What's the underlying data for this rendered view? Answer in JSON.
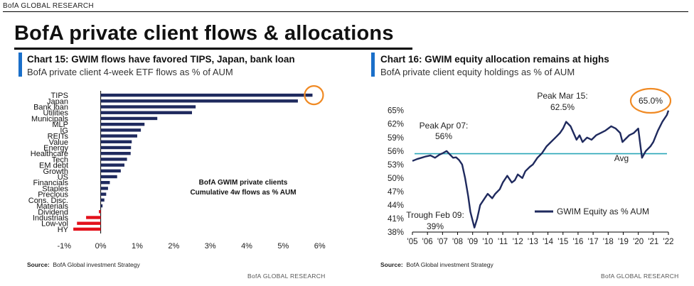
{
  "header": {
    "brand": "BofA GLOBAL RESEARCH",
    "title": "BofA private client flows & allocations"
  },
  "colors": {
    "accent": "#1a6fc9",
    "bar_positive": "#1f2a5e",
    "bar_negative": "#e3101b",
    "highlight": "#f08a24",
    "avg_line": "#2aa6b8"
  },
  "left": {
    "title": "Chart 15: GWIM flows have favored TIPS, Japan, bank loan",
    "subtitle": "BofA private client 4-week ETF flows as % of AUM",
    "annotation_line1": "BofA GWIM private clients",
    "annotation_line2": "Cumulative 4w flows as % AUM",
    "source_label": "Source:",
    "source_text": "BofA Global investment Strategy"
  },
  "right": {
    "title": "Chart 16: GWIM equity allocation remains at highs",
    "subtitle": "BofA private client equity holdings as % of AUM",
    "source_label": "Source:",
    "source_text": "BofA Global investment Strategy",
    "footer_brand": "BofA GLOBAL RESEARCH",
    "legend": "GWIM Equity as % AUM",
    "ann_peak07": [
      "Peak Apr 07:",
      "56%"
    ],
    "ann_peak15": [
      "Peak Mar 15:",
      "62.5%"
    ],
    "ann_trough": [
      "Trough Feb 09:",
      "39%"
    ],
    "ann_avg": "Avg",
    "ann_now": "65.0%"
  },
  "footer_brand": "BofA GLOBAL RESEARCH",
  "chart_data": [
    {
      "type": "bar",
      "orientation": "horizontal",
      "title": "Chart 15: GWIM flows have favored TIPS, Japan, bank loan",
      "categories": [
        "TIPS",
        "Japan",
        "Bank loan",
        "Utilities",
        "Municipals",
        "MLP",
        "IG",
        "REITs",
        "Value",
        "Energy",
        "Healthcare",
        "Tech",
        "EM debt",
        "Growth",
        "US",
        "Financials",
        "Staples",
        "Precious",
        "Cons. Disc.",
        "Materials",
        "Dividend",
        "Industrials",
        "Low-vol",
        "HY"
      ],
      "values": [
        5.8,
        5.4,
        2.6,
        2.5,
        1.55,
        1.2,
        1.1,
        1.0,
        0.85,
        0.83,
        0.82,
        0.72,
        0.65,
        0.55,
        0.45,
        0.25,
        0.2,
        0.15,
        0.1,
        0.05,
        -0.05,
        -0.4,
        -0.65,
        -0.75
      ],
      "xlim": [
        -1.2,
        6.2
      ],
      "xticks": [
        "-1%",
        "0%",
        "1%",
        "2%",
        "3%",
        "4%",
        "5%",
        "6%"
      ],
      "xtick_values": [
        -1,
        0,
        1,
        2,
        3,
        4,
        5,
        6
      ]
    },
    {
      "type": "line",
      "title": "Chart 16: GWIM equity allocation remains at highs",
      "series": [
        {
          "name": "GWIM Equity as % AUM",
          "x": [
            2005.0,
            2005.3,
            2005.6,
            2005.9,
            2006.2,
            2006.5,
            2006.8,
            2007.0,
            2007.27,
            2007.5,
            2007.7,
            2007.9,
            2008.1,
            2008.3,
            2008.5,
            2008.7,
            2008.85,
            2009.0,
            2009.12,
            2009.3,
            2009.5,
            2009.8,
            2010.0,
            2010.3,
            2010.5,
            2010.8,
            2011.0,
            2011.3,
            2011.6,
            2011.8,
            2012.0,
            2012.3,
            2012.5,
            2012.8,
            2013.0,
            2013.3,
            2013.6,
            2013.9,
            2014.2,
            2014.5,
            2014.8,
            2015.0,
            2015.21,
            2015.5,
            2015.7,
            2015.9,
            2016.1,
            2016.3,
            2016.6,
            2016.9,
            2017.2,
            2017.5,
            2017.8,
            2018.0,
            2018.2,
            2018.5,
            2018.8,
            2018.95,
            2019.1,
            2019.4,
            2019.7,
            2020.0,
            2020.15,
            2020.25,
            2020.5,
            2020.8,
            2021.0,
            2021.3,
            2021.6,
            2021.9,
            2022.0
          ],
          "y": [
            53.8,
            54.2,
            54.5,
            54.8,
            55.0,
            54.5,
            55.2,
            55.5,
            56.0,
            55.2,
            54.5,
            54.6,
            54.0,
            53.0,
            50.0,
            46.0,
            42.5,
            40.5,
            39.0,
            41.0,
            44.0,
            45.5,
            46.5,
            45.5,
            46.5,
            47.5,
            49.0,
            50.5,
            49.0,
            49.5,
            50.8,
            50.0,
            51.5,
            52.5,
            53.0,
            54.5,
            55.5,
            57.0,
            58.0,
            59.0,
            60.0,
            61.0,
            62.5,
            61.5,
            60.0,
            58.5,
            59.5,
            58.0,
            59.0,
            58.5,
            59.5,
            60.0,
            60.5,
            61.0,
            61.5,
            61.0,
            60.0,
            58.0,
            58.5,
            59.5,
            60.0,
            61.0,
            57.0,
            54.5,
            56.0,
            57.0,
            58.0,
            60.5,
            62.5,
            64.0,
            65.0
          ]
        }
      ],
      "average": 55.4,
      "ylim": [
        38,
        67
      ],
      "yticks": [
        "65%",
        "62%",
        "59%",
        "56%",
        "53%",
        "50%",
        "47%",
        "44%",
        "41%",
        "38%"
      ],
      "ytick_values": [
        65,
        62,
        59,
        56,
        53,
        50,
        47,
        44,
        41,
        38
      ],
      "xticks": [
        "'05",
        "'06",
        "'07",
        "'08",
        "'09",
        "'10",
        "'11",
        "'12",
        "'13",
        "'14",
        "'15",
        "'16",
        "'17",
        "'18",
        "'19",
        "'20",
        "'21",
        "'22"
      ],
      "xtick_values": [
        2005,
        2006,
        2007,
        2008,
        2009,
        2010,
        2011,
        2012,
        2013,
        2014,
        2015,
        2016,
        2017,
        2018,
        2019,
        2020,
        2021,
        2022
      ]
    }
  ]
}
